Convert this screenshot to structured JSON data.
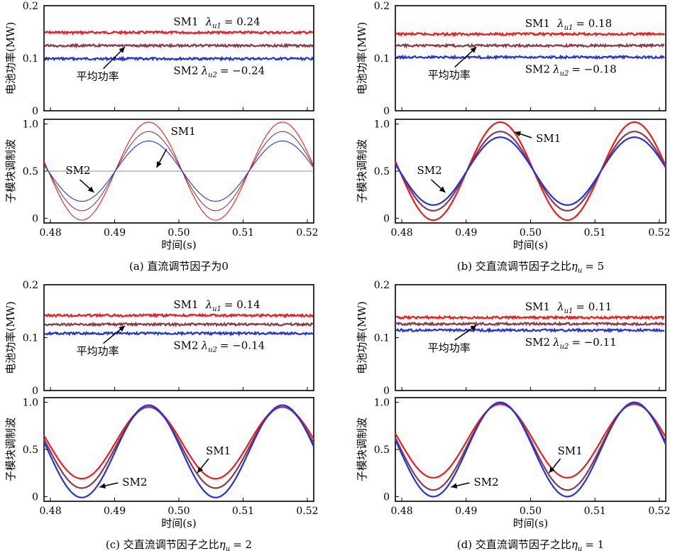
{
  "chart_data": [
    {
      "panel": "a",
      "caption": "(a) 直流调节因子为0",
      "xlabel": "时间(s)",
      "x_ticks": [
        "0.48",
        "0.49",
        "0.50",
        "0.51",
        "0.52"
      ],
      "xlim": [
        0.479,
        0.521
      ],
      "power": {
        "type": "line",
        "ylabel": "电池功率(MW)",
        "ylim": [
          0,
          0.2
        ],
        "y_ticks": [
          "0",
          "0.1",
          "0.2"
        ],
        "series": [
          {
            "value": 0.149,
            "color": "#ee1c1c"
          },
          {
            "value": 0.124,
            "color": "#8b3a4a"
          },
          {
            "value": 0.099,
            "color": "#2233dd"
          }
        ],
        "annotations": {
          "sm1_name": "SM1",
          "sm1_lambda": "λ",
          "sm1_sub": "u1",
          "sm1_value": "= 0.24",
          "sm2_name": "SM2",
          "sm2_lambda": "λ",
          "sm2_sub": "u2",
          "sm2_value": "= −0.24",
          "avg": "平均功率"
        }
      },
      "mod": {
        "type": "line",
        "ylabel": "子模块调制波",
        "ylim": [
          -0.05,
          1.05
        ],
        "y_ticks": [
          "0",
          "0.5",
          "1.0"
        ],
        "offset": 0.5,
        "frequency_hz": 48,
        "peak_x": 0.4953,
        "amplitudes": [
          0.52,
          0.42,
          0.32
        ],
        "colors": [
          "#ee1c1c",
          "#8b3a4a",
          "#2233dd"
        ],
        "thin": true,
        "midline": true,
        "labels": {
          "sm1": "SM1",
          "sm2": "SM2"
        }
      }
    },
    {
      "panel": "b",
      "caption": "(b) 交直流调节因子之比",
      "caption_symbol": "η",
      "caption_sub": "u",
      "caption_value": "= 5",
      "xlabel": "时间(s)",
      "x_ticks": [
        "0.48",
        "0.49",
        "0.50",
        "0.51",
        "0.52"
      ],
      "xlim": [
        0.479,
        0.521
      ],
      "power": {
        "type": "line",
        "ylabel": "电池功率(MW)",
        "ylim": [
          0,
          0.2
        ],
        "y_ticks": [
          "0",
          "0.1",
          "0.2"
        ],
        "series": [
          {
            "value": 0.146,
            "color": "#ee1c1c"
          },
          {
            "value": 0.124,
            "color": "#8b3a4a"
          },
          {
            "value": 0.102,
            "color": "#2233dd"
          }
        ],
        "annotations": {
          "sm1_name": "SM1",
          "sm1_lambda": "λ",
          "sm1_sub": "u1",
          "sm1_value": "= 0.18",
          "sm2_name": "SM2",
          "sm2_lambda": "λ",
          "sm2_sub": "u2",
          "sm2_value": "= −0.18",
          "avg": "平均功率"
        }
      },
      "mod": {
        "type": "line",
        "ylabel": "子模块调制波",
        "ylim": [
          -0.05,
          1.05
        ],
        "y_ticks": [
          "0",
          "0.5",
          "1.0"
        ],
        "offset": 0.5,
        "frequency_hz": 48,
        "peak_x": 0.4953,
        "amplitudes": [
          0.52,
          0.42,
          0.36
        ],
        "colors": [
          "#ee1c1c",
          "#8b3a4a",
          "#2233dd"
        ],
        "thin": false,
        "midline": false,
        "labels": {
          "sm1": "SM1",
          "sm2": "SM2"
        }
      }
    },
    {
      "panel": "c",
      "caption": "(c) 交直流调节因子之比",
      "caption_symbol": "η",
      "caption_sub": "u",
      "caption_value": "= 2",
      "xlabel": "时间(s)",
      "x_ticks": [
        "0.48",
        "0.49",
        "0.50",
        "0.51",
        "0.52"
      ],
      "xlim": [
        0.479,
        0.521
      ],
      "power": {
        "type": "line",
        "ylabel": "电池功率(MW)",
        "ylim": [
          0,
          0.2
        ],
        "y_ticks": [
          "0",
          "0.1",
          "0.2"
        ],
        "series": [
          {
            "value": 0.142,
            "color": "#ee1c1c"
          },
          {
            "value": 0.125,
            "color": "#8b3a4a"
          },
          {
            "value": 0.108,
            "color": "#2233dd"
          }
        ],
        "annotations": {
          "sm1_name": "SM1",
          "sm1_lambda": "λ",
          "sm1_sub": "u1",
          "sm1_value": "= 0.14",
          "sm2_name": "SM2",
          "sm2_lambda": "λ",
          "sm2_sub": "u2",
          "sm2_value": "= −0.14",
          "avg": "平均功率"
        }
      },
      "mod": {
        "type": "line",
        "ylabel": "子模块调制波",
        "ylim": [
          -0.05,
          1.05
        ],
        "y_ticks": [
          "0",
          "0.5",
          "1.0"
        ],
        "frequency_hz": 48,
        "peak_x": 0.4953,
        "waves": [
          {
            "offset": 0.57,
            "amp": 0.38,
            "color": "#ee1c1c"
          },
          {
            "offset": 0.52,
            "amp": 0.43,
            "color": "#8b3a4a"
          },
          {
            "offset": 0.48,
            "amp": 0.49,
            "color": "#2233dd"
          }
        ],
        "thin": false,
        "midline": false,
        "labels": {
          "sm1": "SM1",
          "sm2": "SM2"
        }
      }
    },
    {
      "panel": "d",
      "caption": "(d) 交直流调节因子之比",
      "caption_symbol": "η",
      "caption_sub": "u",
      "caption_value": "= 1",
      "xlabel": "时间(s)",
      "x_ticks": [
        "0.48",
        "0.49",
        "0.50",
        "0.51",
        "0.52"
      ],
      "xlim": [
        0.479,
        0.521
      ],
      "power": {
        "type": "line",
        "ylabel": "电池功率(MW)",
        "ylim": [
          0,
          0.2
        ],
        "y_ticks": [
          "0",
          "0.1",
          "0.2"
        ],
        "series": [
          {
            "value": 0.138,
            "color": "#ee1c1c"
          },
          {
            "value": 0.126,
            "color": "#8b3a4a"
          },
          {
            "value": 0.114,
            "color": "#2233dd"
          }
        ],
        "annotations": {
          "sm1_name": "SM1",
          "sm1_lambda": "λ",
          "sm1_sub": "u1",
          "sm1_value": "= 0.11",
          "sm2_name": "SM2",
          "sm2_lambda": "λ",
          "sm2_sub": "u2",
          "sm2_value": "= −0.11",
          "avg": "平均功率"
        }
      },
      "mod": {
        "type": "line",
        "ylabel": "子模块调制波",
        "ylim": [
          -0.05,
          1.05
        ],
        "y_ticks": [
          "0",
          "0.5",
          "1.0"
        ],
        "frequency_hz": 48,
        "peak_x": 0.4953,
        "waves": [
          {
            "offset": 0.59,
            "amp": 0.39,
            "color": "#ee1c1c"
          },
          {
            "offset": 0.53,
            "amp": 0.46,
            "color": "#8b3a4a"
          },
          {
            "offset": 0.5,
            "amp": 0.5,
            "color": "#2233dd"
          }
        ],
        "thin": false,
        "midline": false,
        "labels": {
          "sm1": "SM1",
          "sm2": "SM2"
        }
      }
    }
  ]
}
